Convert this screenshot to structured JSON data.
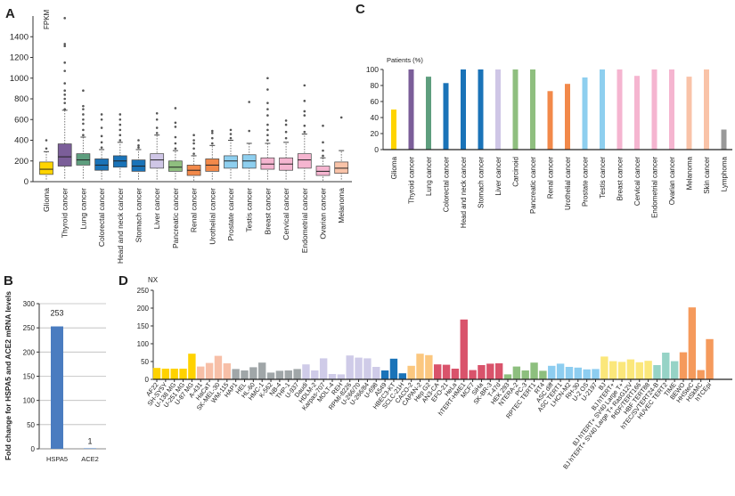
{
  "panel_labels": {
    "a": "A",
    "b": "B",
    "c": "C",
    "d": "D"
  },
  "chart_data": [
    {
      "panel": "A",
      "type": "boxplot",
      "ylabel": "FPKM",
      "ylim": [
        0,
        1600
      ],
      "yticks": [
        0,
        200,
        400,
        600,
        800,
        1000,
        1200,
        1400
      ],
      "categories": [
        "Glioma",
        "Thyroid cancer",
        "Lung cancer",
        "Colorectal cancer",
        "Head and neck cancer",
        "Stomach cancer",
        "Liver cancer",
        "Pancreatic cancer",
        "Renal cancer",
        "Urothelial cancer",
        "Prostate cancer",
        "Testis cancer",
        "Breast cancer",
        "Cervical cancer",
        "Endometrial cancer",
        "Ovarian cancer",
        "Melanoma"
      ],
      "boxes": [
        {
          "whisker_low": 20,
          "q1": 70,
          "median": 120,
          "q3": 190,
          "whisker_high": 290,
          "outliers": [
            320,
            400
          ],
          "color": "#FFD400"
        },
        {
          "whisker_low": 30,
          "q1": 150,
          "median": 240,
          "q3": 365,
          "whisker_high": 690,
          "outliers": [
            700,
            760,
            800,
            840,
            880,
            950,
            1070,
            1150,
            1310,
            1330,
            1580
          ],
          "color": "#7B5E99"
        },
        {
          "whisker_low": 30,
          "q1": 160,
          "median": 210,
          "q3": 270,
          "whisker_high": 430,
          "outliers": [
            450,
            500,
            560,
            600,
            650,
            700,
            730,
            880
          ],
          "color": "#5E9E7E"
        },
        {
          "whisker_low": 20,
          "q1": 110,
          "median": 160,
          "q3": 220,
          "whisker_high": 310,
          "outliers": [
            330,
            380,
            440,
            520,
            600,
            650
          ],
          "color": "#1A73B8"
        },
        {
          "whisker_low": 40,
          "q1": 140,
          "median": 200,
          "q3": 250,
          "whisker_high": 380,
          "outliers": [
            400,
            450,
            500,
            550,
            600,
            650
          ],
          "color": "#1A73B8"
        },
        {
          "whisker_low": 20,
          "q1": 100,
          "median": 150,
          "q3": 210,
          "whisker_high": 310,
          "outliers": [
            330,
            350,
            400
          ],
          "color": "#1A73B8"
        },
        {
          "whisker_low": 20,
          "q1": 130,
          "median": 210,
          "q3": 270,
          "whisker_high": 450,
          "outliers": [
            470,
            520,
            600,
            660
          ],
          "color": "#CFC6E6"
        },
        {
          "whisker_low": 20,
          "q1": 100,
          "median": 140,
          "q3": 200,
          "whisker_high": 300,
          "outliers": [
            320,
            370,
            430,
            530,
            570,
            710
          ],
          "color": "#8FBF7F"
        },
        {
          "whisker_low": 10,
          "q1": 60,
          "median": 110,
          "q3": 160,
          "whisker_high": 250,
          "outliers": [
            270,
            320,
            370,
            400,
            450
          ],
          "color": "#F2894A"
        },
        {
          "whisker_low": 20,
          "q1": 100,
          "median": 160,
          "q3": 220,
          "whisker_high": 350,
          "outliers": [
            370,
            420,
            470,
            490
          ],
          "color": "#F2894A"
        },
        {
          "whisker_low": 30,
          "q1": 130,
          "median": 200,
          "q3": 250,
          "whisker_high": 400,
          "outliers": [
            420,
            460,
            500
          ],
          "color": "#8ECFEF"
        },
        {
          "whisker_low": 20,
          "q1": 130,
          "median": 200,
          "q3": 260,
          "whisker_high": 370,
          "outliers": [
            490,
            770
          ],
          "color": "#8ECFEF"
        },
        {
          "whisker_low": 20,
          "q1": 120,
          "median": 170,
          "q3": 230,
          "whisker_high": 370,
          "outliers": [
            400,
            450,
            500,
            550,
            640,
            700,
            760,
            890,
            1000
          ],
          "color": "#F5B5D0"
        },
        {
          "whisker_low": 20,
          "q1": 110,
          "median": 170,
          "q3": 230,
          "whisker_high": 380,
          "outliers": [
            420,
            480,
            550,
            590
          ],
          "color": "#F5B5D0"
        },
        {
          "whisker_low": 20,
          "q1": 130,
          "median": 210,
          "q3": 270,
          "whisker_high": 460,
          "outliers": [
            480,
            540,
            640,
            680,
            780,
            930
          ],
          "color": "#F5B5D0"
        },
        {
          "whisker_low": 10,
          "q1": 60,
          "median": 100,
          "q3": 150,
          "whisker_high": 230,
          "outliers": [
            250,
            300,
            380,
            540
          ],
          "color": "#F5B5D0"
        },
        {
          "whisker_low": 20,
          "q1": 80,
          "median": 130,
          "q3": 190,
          "whisker_high": 300,
          "outliers": [
            620
          ],
          "color": "#F9C3A8"
        }
      ]
    },
    {
      "panel": "B",
      "type": "bar",
      "ylabel": "Fold change for HSPA5 and ACE2 mRNA levels",
      "ylim": [
        0,
        300
      ],
      "yticks": [
        0,
        50,
        100,
        150,
        200,
        250,
        300
      ],
      "grid": true,
      "categories": [
        "HSPA5",
        "ACE2"
      ],
      "values": [
        253,
        1
      ],
      "data_labels": [
        "253",
        "1"
      ],
      "color": "#4A7CC0"
    },
    {
      "panel": "C",
      "type": "bar",
      "ylabel": "Patients (%)",
      "ylim": [
        0,
        100
      ],
      "yticks": [
        0,
        20,
        40,
        60,
        80,
        100
      ],
      "categories": [
        "Glioma",
        "Thyroid cancer",
        "Lung cancer",
        "Colorectal cancer",
        "Head and neck cancer",
        "Stomach cancer",
        "Liver cancer",
        "Carcinoid",
        "Pancreatic cancer",
        "Renal cancer",
        "Urothelial cancer",
        "Prostate cancer",
        "Testis cancer",
        "Breast cancer",
        "Cervical cancer",
        "Endometrial cancer",
        "Ovarian cancer",
        "Melanoma",
        "Skin cancer",
        "Lymphoma"
      ],
      "values": [
        50,
        100,
        91,
        83,
        100,
        100,
        100,
        100,
        100,
        73,
        82,
        90,
        100,
        100,
        92,
        100,
        100,
        91,
        100,
        25
      ],
      "colors": [
        "#FFD400",
        "#7B5E99",
        "#5E9E7E",
        "#1A73B8",
        "#1A73B8",
        "#1A73B8",
        "#CFC6E6",
        "#8FBF7F",
        "#8FBF7F",
        "#F2894A",
        "#F2894A",
        "#8ECFEF",
        "#8ECFEF",
        "#F5B5D0",
        "#F5B5D0",
        "#F5B5D0",
        "#F5B5D0",
        "#F9C3A8",
        "#F9C3A8",
        "#999999"
      ]
    },
    {
      "panel": "D",
      "type": "bar",
      "ylabel": "NX",
      "ylim": [
        0,
        250
      ],
      "yticks": [
        0,
        50,
        100,
        150,
        200,
        250
      ],
      "categories": [
        "AF22",
        "SH-SY5Y",
        "U-138 MG",
        "U-251 MG",
        "U-87 MG",
        "A-431",
        "HaCaT",
        "SK-MEL-30",
        "WM-115",
        "HAP1",
        "HEL",
        "HL-60",
        "HMC-1",
        "K-562",
        "NB-4",
        "THP-1",
        "U-937",
        "Daudi",
        "HDLM-2",
        "Karpas-707",
        "MOLT-4",
        "REH",
        "RPMI-8226",
        "U-266/70",
        "U-266/84",
        "U-698",
        "A549",
        "HBEC3-KT",
        "SCLC-21H",
        "CACO-2",
        "CAPAN-2",
        "Hep G2",
        "AN3-CA",
        "EFO-21",
        "HeLa",
        "hTERT-HME1",
        "MCF7",
        "SiHa",
        "SK-BR-3",
        "T-47d",
        "HEK 293",
        "NTERA-2",
        "PC-3",
        "RPTEC TERT1",
        "RT4",
        "ASC diff",
        "ASC TERT1",
        "LHCN-M2",
        "RH-30",
        "U-2 OS",
        "U-2197",
        "BJ",
        "BJ hTERT+",
        "BJ hTERT+ SV40 Large T+",
        "BJ hTERT+ SV40 Large T+ RasG12V",
        "fHDF/TERT166",
        "HBF TERT88",
        "hTEC/SVTERT24-B",
        "HUVEC TERT2",
        "TIME",
        "BEWO",
        "HHSteC",
        "HSkMC",
        "hTCEpi"
      ],
      "values": [
        32,
        30,
        30,
        30,
        72,
        36,
        46,
        66,
        45,
        29,
        25,
        34,
        47,
        19,
        24,
        25,
        29,
        42,
        25,
        59,
        15,
        14,
        67,
        61,
        59,
        35,
        25,
        58,
        17,
        38,
        72,
        68,
        42,
        41,
        30,
        168,
        26,
        40,
        44,
        45,
        14,
        36,
        25,
        47,
        24,
        38,
        44,
        35,
        33,
        28,
        29,
        64,
        51,
        49,
        56,
        48,
        52,
        40,
        75,
        51,
        76,
        202,
        26,
        113
      ],
      "group_sizes": [
        5,
        4,
        8,
        9,
        3,
        3,
        8,
        5,
        6,
        6,
        3,
        4
      ],
      "group_colors": [
        "#FFD200",
        "#F7BFA7",
        "#A0A6A8",
        "#CFCBE8",
        "#1A73B8",
        "#FBC77F",
        "#D9536B",
        "#8DBF7E",
        "#8DCDF0",
        "#FBE77A",
        "#96D3C6",
        "#F59A5C"
      ]
    }
  ]
}
